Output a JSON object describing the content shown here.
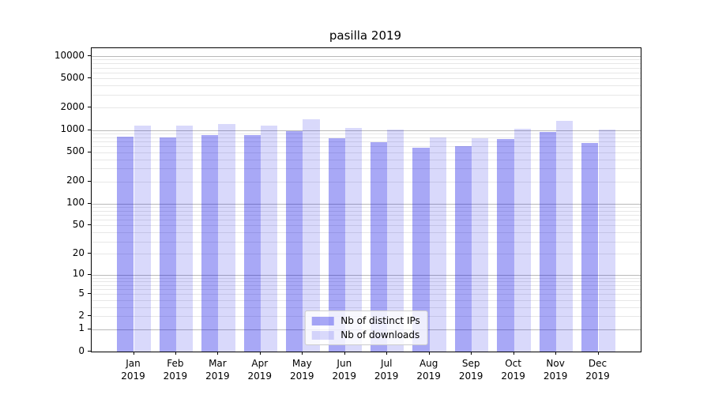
{
  "chart_data": {
    "type": "bar",
    "title": "pasilla 2019",
    "xlabel": "",
    "ylabel": "",
    "categories": [
      "Jan 2019",
      "Feb 2019",
      "Mar 2019",
      "Apr 2019",
      "May 2019",
      "Jun 2019",
      "Jul 2019",
      "Aug 2019",
      "Sep 2019",
      "Oct 2019",
      "Nov 2019",
      "Dec 2019"
    ],
    "series": [
      {
        "name": "Nb of distinct IPs",
        "color_hex": "#0000E6",
        "alpha": 0.34,
        "values": [
          810,
          785,
          860,
          855,
          955,
          780,
          690,
          580,
          610,
          750,
          950,
          670
        ]
      },
      {
        "name": "Nb of downloads",
        "color_hex": "#0000E6",
        "alpha": 0.15,
        "values": [
          1140,
          1155,
          1215,
          1150,
          1390,
          1075,
          1025,
          790,
          765,
          1050,
          1320,
          1015
        ]
      }
    ],
    "yscale": "log1p",
    "yticks": [
      0,
      1,
      2,
      5,
      10,
      20,
      50,
      100,
      200,
      500,
      1000,
      2000,
      5000,
      10000
    ],
    "major_gridlines": [
      1,
      10,
      100,
      1000,
      10000
    ],
    "ylim": [
      0,
      12700
    ],
    "grid": true,
    "legend_position": "lower center",
    "colors": {
      "grid_major": "#b9b9b9",
      "grid_minor": "#e7e7e7",
      "spine": "#000000",
      "text": "#000000",
      "legend_border": "#cccccc"
    }
  }
}
